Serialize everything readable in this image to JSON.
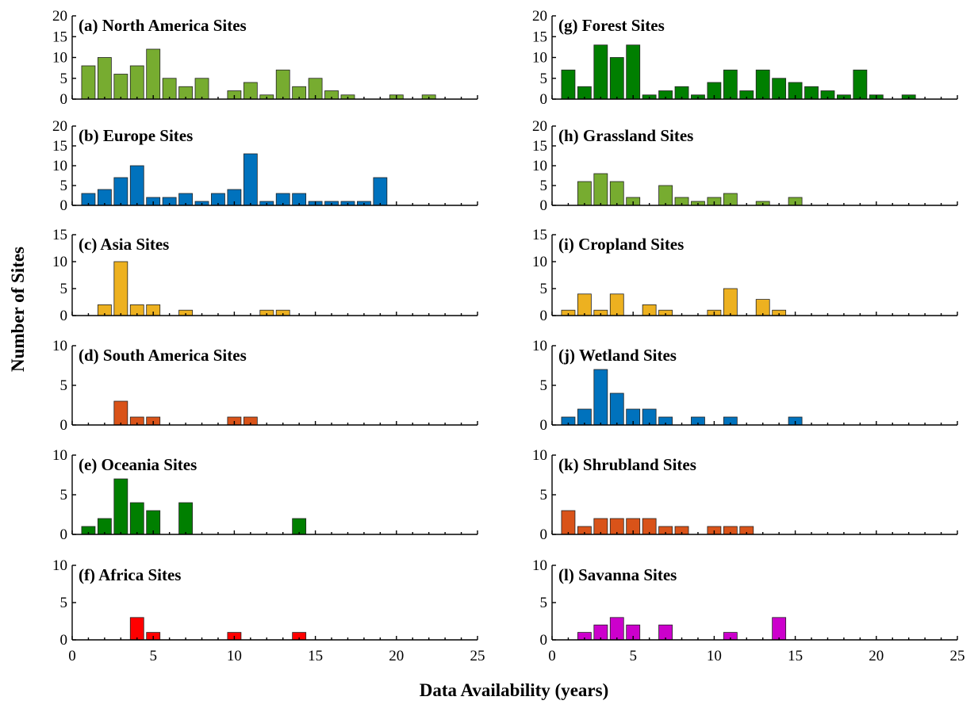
{
  "chart_data": {
    "type": "bar",
    "xlabel": "Data Availability (years)",
    "ylabel": "Number of Sites",
    "xlim": [
      0,
      25
    ],
    "xticks": [
      0,
      5,
      10,
      15,
      20,
      25
    ],
    "panels": [
      {
        "title": "(a) North America Sites",
        "color": "#77ac30",
        "ylim": [
          0,
          20
        ],
        "yticks": [
          0,
          5,
          10,
          15,
          20
        ],
        "x": [
          1,
          2,
          3,
          4,
          5,
          6,
          7,
          8,
          10,
          11,
          12,
          13,
          14,
          15,
          16,
          17,
          20,
          22
        ],
        "values": [
          8,
          10,
          6,
          8,
          12,
          5,
          3,
          5,
          2,
          4,
          1,
          7,
          3,
          5,
          2,
          1,
          1,
          1
        ]
      },
      {
        "title": "(b) Europe Sites",
        "color": "#0072bd",
        "ylim": [
          0,
          20
        ],
        "yticks": [
          0,
          5,
          10,
          15,
          20
        ],
        "x": [
          1,
          2,
          3,
          4,
          5,
          6,
          7,
          8,
          9,
          10,
          11,
          12,
          13,
          14,
          15,
          16,
          17,
          18,
          19
        ],
        "values": [
          3,
          4,
          7,
          10,
          2,
          2,
          3,
          1,
          3,
          4,
          13,
          1,
          3,
          3,
          1,
          1,
          1,
          1,
          7
        ]
      },
      {
        "title": "(c) Asia Sites",
        "color": "#edb120",
        "ylim": [
          0,
          15
        ],
        "yticks": [
          0,
          5,
          10,
          15
        ],
        "x": [
          2,
          3,
          4,
          5,
          7,
          12,
          13
        ],
        "values": [
          2,
          10,
          2,
          2,
          1,
          1,
          1
        ]
      },
      {
        "title": "(d) South America Sites",
        "color": "#d95319",
        "ylim": [
          0,
          10
        ],
        "yticks": [
          0,
          5,
          10
        ],
        "x": [
          3,
          4,
          5,
          10,
          11
        ],
        "values": [
          3,
          1,
          1,
          1,
          1
        ]
      },
      {
        "title": "(e) Oceania Sites",
        "color": "#007f00",
        "ylim": [
          0,
          10
        ],
        "yticks": [
          0,
          5,
          10
        ],
        "x": [
          1,
          2,
          3,
          4,
          5,
          7,
          14
        ],
        "values": [
          1,
          2,
          7,
          4,
          3,
          4,
          2
        ]
      },
      {
        "title": "(f) Africa Sites",
        "color": "#ff0000",
        "ylim": [
          0,
          10
        ],
        "yticks": [
          0,
          5,
          10
        ],
        "x": [
          4,
          5,
          10,
          14
        ],
        "values": [
          3,
          1,
          1,
          1
        ]
      },
      {
        "title": "(g) Forest Sites",
        "color": "#007f00",
        "ylim": [
          0,
          20
        ],
        "yticks": [
          0,
          5,
          10,
          15,
          20
        ],
        "x": [
          1,
          2,
          3,
          4,
          5,
          6,
          7,
          8,
          9,
          10,
          11,
          12,
          13,
          14,
          15,
          16,
          17,
          18,
          19,
          20,
          22
        ],
        "values": [
          7,
          3,
          13,
          10,
          13,
          1,
          2,
          3,
          1,
          4,
          7,
          2,
          7,
          5,
          4,
          3,
          2,
          1,
          7,
          1,
          1
        ]
      },
      {
        "title": "(h) Grassland Sites",
        "color": "#77ac30",
        "ylim": [
          0,
          20
        ],
        "yticks": [
          0,
          5,
          10,
          15,
          20
        ],
        "x": [
          2,
          3,
          4,
          5,
          7,
          8,
          9,
          10,
          11,
          13,
          15
        ],
        "values": [
          6,
          8,
          6,
          2,
          5,
          2,
          1,
          2,
          3,
          1,
          2
        ]
      },
      {
        "title": "(i) Cropland Sites",
        "color": "#edb120",
        "ylim": [
          0,
          15
        ],
        "yticks": [
          0,
          5,
          10,
          15
        ],
        "x": [
          1,
          2,
          3,
          4,
          6,
          7,
          10,
          11,
          13,
          14
        ],
        "values": [
          1,
          4,
          1,
          4,
          2,
          1,
          1,
          5,
          3,
          1
        ]
      },
      {
        "title": "(j) Wetland Sites",
        "color": "#0072bd",
        "ylim": [
          0,
          10
        ],
        "yticks": [
          0,
          5,
          10
        ],
        "x": [
          1,
          2,
          3,
          4,
          5,
          6,
          7,
          9,
          11,
          15
        ],
        "values": [
          1,
          2,
          7,
          4,
          2,
          2,
          1,
          1,
          1,
          1
        ]
      },
      {
        "title": "(k) Shrubland Sites",
        "color": "#d95319",
        "ylim": [
          0,
          10
        ],
        "yticks": [
          0,
          5,
          10
        ],
        "x": [
          1,
          2,
          3,
          4,
          5,
          6,
          7,
          8,
          10,
          11,
          12
        ],
        "values": [
          3,
          1,
          2,
          2,
          2,
          2,
          1,
          1,
          1,
          1,
          1
        ]
      },
      {
        "title": "(l) Savanna Sites",
        "color": "#cc00cc",
        "ylim": [
          0,
          10
        ],
        "yticks": [
          0,
          5,
          10
        ],
        "x": [
          2,
          3,
          4,
          5,
          7,
          11,
          14
        ],
        "values": [
          1,
          2,
          3,
          2,
          2,
          1,
          3
        ]
      }
    ]
  }
}
